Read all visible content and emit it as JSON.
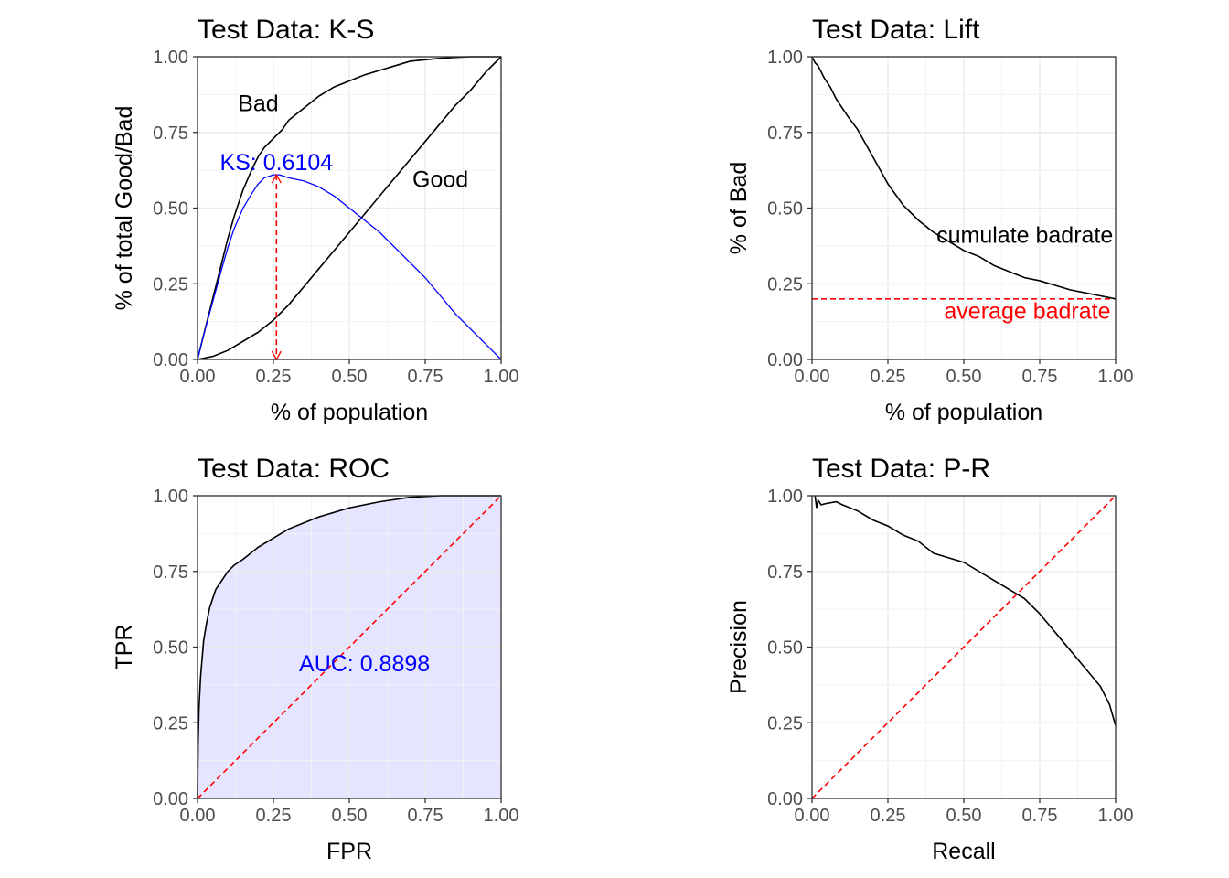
{
  "chart_data": [
    {
      "id": "ks",
      "type": "line",
      "title": "Test Data: K-S",
      "xlabel": "% of population",
      "ylabel": "% of total Good/Bad",
      "xlim": [
        0,
        1
      ],
      "ylim": [
        0,
        1
      ],
      "x_ticks": [
        "0.00",
        "0.25",
        "0.50",
        "0.75",
        "1.00"
      ],
      "y_ticks": [
        "0.00",
        "0.25",
        "0.50",
        "0.75",
        "1.00"
      ],
      "grid": true,
      "series": [
        {
          "name": "Bad",
          "color": "#000000",
          "x": [
            0,
            0.02,
            0.05,
            0.08,
            0.1,
            0.12,
            0.15,
            0.18,
            0.2,
            0.22,
            0.25,
            0.28,
            0.3,
            0.35,
            0.4,
            0.45,
            0.5,
            0.55,
            0.6,
            0.65,
            0.7,
            0.75,
            0.8,
            0.85,
            0.9,
            0.95,
            1.0
          ],
          "y": [
            0,
            0.08,
            0.2,
            0.32,
            0.4,
            0.47,
            0.56,
            0.63,
            0.67,
            0.7,
            0.73,
            0.76,
            0.79,
            0.83,
            0.87,
            0.9,
            0.92,
            0.94,
            0.955,
            0.97,
            0.985,
            0.99,
            0.995,
            0.998,
            1.0,
            1.0,
            1.0
          ]
        },
        {
          "name": "Good",
          "color": "#000000",
          "x": [
            0,
            0.05,
            0.1,
            0.15,
            0.2,
            0.25,
            0.3,
            0.35,
            0.4,
            0.45,
            0.5,
            0.55,
            0.6,
            0.65,
            0.7,
            0.75,
            0.8,
            0.85,
            0.9,
            0.95,
            1.0
          ],
          "y": [
            0,
            0.01,
            0.03,
            0.06,
            0.09,
            0.13,
            0.18,
            0.24,
            0.3,
            0.36,
            0.42,
            0.48,
            0.54,
            0.6,
            0.66,
            0.72,
            0.78,
            0.84,
            0.89,
            0.95,
            1.0
          ]
        },
        {
          "name": "KS",
          "color": "#0000ff",
          "x": [
            0,
            0.02,
            0.05,
            0.08,
            0.1,
            0.12,
            0.15,
            0.18,
            0.2,
            0.22,
            0.25,
            0.27,
            0.3,
            0.35,
            0.4,
            0.45,
            0.5,
            0.55,
            0.6,
            0.65,
            0.7,
            0.75,
            0.8,
            0.85,
            0.9,
            0.95,
            1.0
          ],
          "y": [
            0,
            0.08,
            0.19,
            0.3,
            0.37,
            0.43,
            0.5,
            0.55,
            0.58,
            0.6,
            0.61,
            0.61,
            0.6,
            0.59,
            0.57,
            0.54,
            0.5,
            0.46,
            0.42,
            0.37,
            0.32,
            0.27,
            0.21,
            0.15,
            0.1,
            0.05,
            0.0
          ]
        }
      ],
      "ks_x": 0.26,
      "ks_y_top": 0.61,
      "annotations": {
        "bad_label": "Bad",
        "good_label": "Good",
        "ks_label": "KS: 0.6104"
      }
    },
    {
      "id": "lift",
      "type": "line",
      "title": "Test Data: Lift",
      "xlabel": "% of population",
      "ylabel": "% of Bad",
      "xlim": [
        0,
        1
      ],
      "ylim": [
        0,
        1
      ],
      "x_ticks": [
        "0.00",
        "0.25",
        "0.50",
        "0.75",
        "1.00"
      ],
      "y_ticks": [
        "0.00",
        "0.25",
        "0.50",
        "0.75",
        "1.00"
      ],
      "grid": true,
      "series": [
        {
          "name": "cumulate badrate",
          "color": "#000000",
          "x": [
            0,
            0.01,
            0.02,
            0.04,
            0.06,
            0.08,
            0.1,
            0.12,
            0.15,
            0.2,
            0.25,
            0.3,
            0.35,
            0.4,
            0.45,
            0.5,
            0.55,
            0.6,
            0.65,
            0.7,
            0.75,
            0.8,
            0.85,
            0.9,
            0.95,
            1.0
          ],
          "y": [
            1.0,
            0.98,
            0.97,
            0.93,
            0.9,
            0.86,
            0.83,
            0.8,
            0.76,
            0.67,
            0.58,
            0.51,
            0.46,
            0.42,
            0.39,
            0.36,
            0.34,
            0.31,
            0.29,
            0.27,
            0.26,
            0.245,
            0.23,
            0.22,
            0.21,
            0.2
          ]
        }
      ],
      "avg_badrate": 0.2,
      "annotations": {
        "cumulate_label": "cumulate badrate",
        "average_label": "average badrate"
      }
    },
    {
      "id": "roc",
      "type": "area",
      "title": "Test Data: ROC",
      "xlabel": "FPR",
      "ylabel": "TPR",
      "xlim": [
        0,
        1
      ],
      "ylim": [
        0,
        1
      ],
      "x_ticks": [
        "0.00",
        "0.25",
        "0.50",
        "0.75",
        "1.00"
      ],
      "y_ticks": [
        "0.00",
        "0.25",
        "0.50",
        "0.75",
        "1.00"
      ],
      "grid": true,
      "series": [
        {
          "name": "ROC",
          "color": "#000000",
          "fill": "#e5e5ff",
          "x": [
            0,
            0.002,
            0.005,
            0.01,
            0.015,
            0.02,
            0.03,
            0.04,
            0.05,
            0.06,
            0.08,
            0.1,
            0.12,
            0.15,
            0.2,
            0.25,
            0.3,
            0.35,
            0.4,
            0.5,
            0.6,
            0.7,
            0.8,
            0.9,
            1.0
          ],
          "y": [
            0,
            0.18,
            0.3,
            0.4,
            0.46,
            0.52,
            0.58,
            0.63,
            0.66,
            0.69,
            0.72,
            0.75,
            0.77,
            0.79,
            0.83,
            0.86,
            0.89,
            0.91,
            0.93,
            0.96,
            0.98,
            0.995,
            1.0,
            1.0,
            1.0
          ]
        }
      ],
      "annotations": {
        "auc_label": "AUC: 0.8898"
      }
    },
    {
      "id": "pr",
      "type": "line",
      "title": "Test Data: P-R",
      "xlabel": "Recall",
      "ylabel": "Precision",
      "xlim": [
        0,
        1
      ],
      "ylim": [
        0,
        1
      ],
      "x_ticks": [
        "0.00",
        "0.25",
        "0.50",
        "0.75",
        "1.00"
      ],
      "y_ticks": [
        "0.00",
        "0.25",
        "0.50",
        "0.75",
        "1.00"
      ],
      "grid": true,
      "series": [
        {
          "name": "P-R",
          "color": "#000000",
          "x": [
            0.01,
            0.015,
            0.02,
            0.03,
            0.05,
            0.08,
            0.1,
            0.15,
            0.2,
            0.25,
            0.3,
            0.35,
            0.4,
            0.45,
            0.5,
            0.55,
            0.6,
            0.65,
            0.7,
            0.75,
            0.8,
            0.85,
            0.9,
            0.95,
            0.98,
            1.0
          ],
          "y": [
            1.0,
            0.96,
            0.985,
            0.97,
            0.975,
            0.98,
            0.97,
            0.95,
            0.92,
            0.9,
            0.87,
            0.85,
            0.81,
            0.795,
            0.78,
            0.75,
            0.72,
            0.69,
            0.66,
            0.61,
            0.55,
            0.49,
            0.43,
            0.37,
            0.31,
            0.24
          ]
        }
      ]
    }
  ]
}
